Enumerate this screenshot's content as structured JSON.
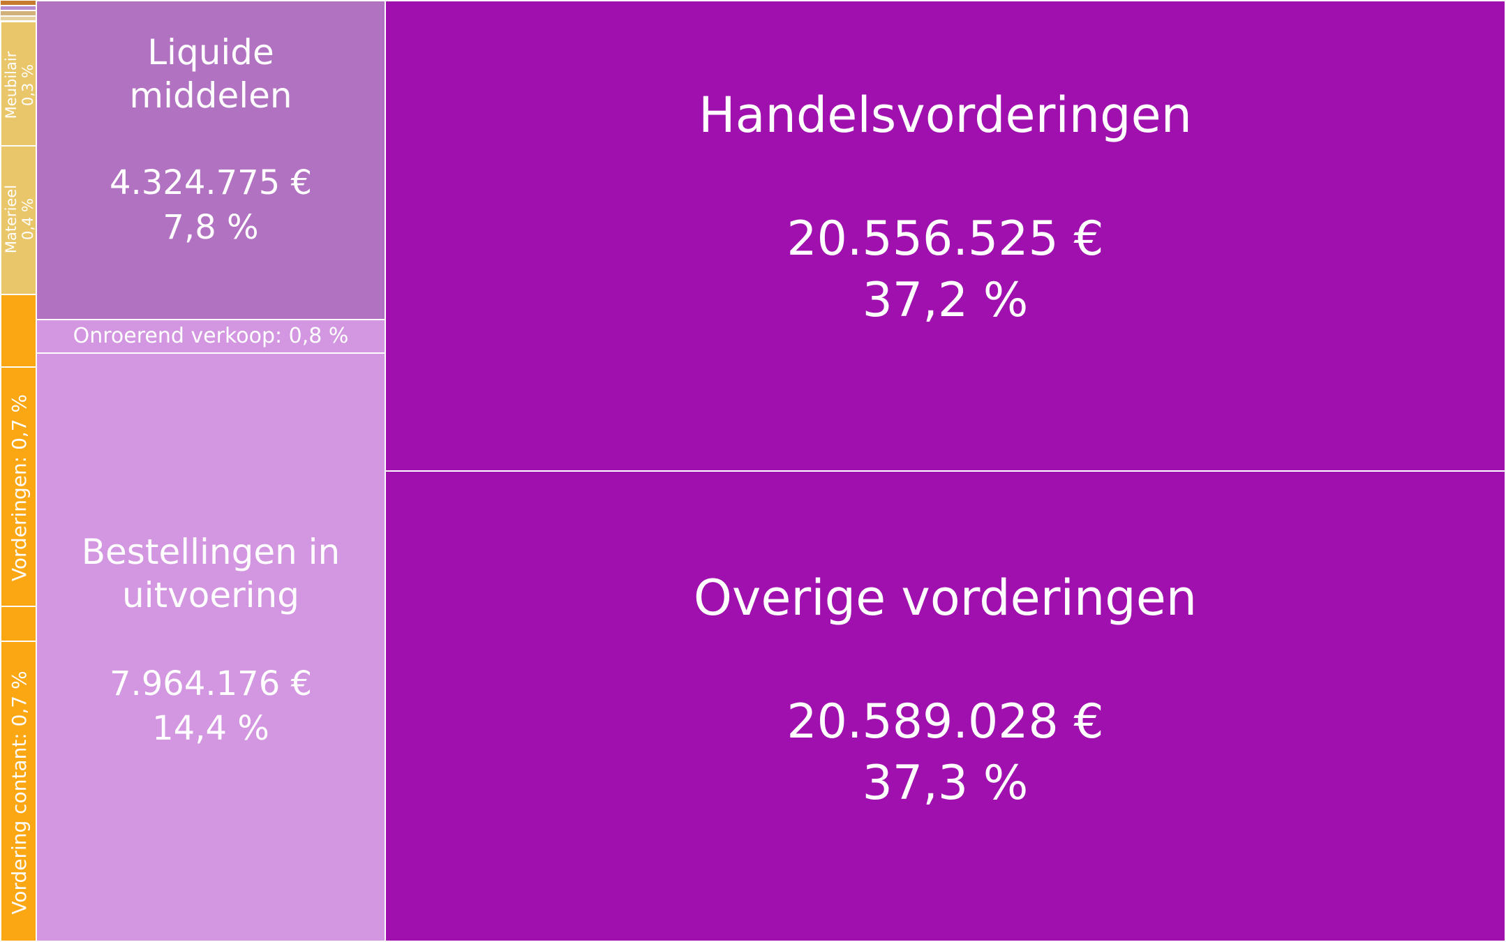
{
  "chart_data": {
    "type": "treemap",
    "currency": "€",
    "tiles": [
      {
        "id": "handelsvorderingen",
        "name": "Handelsvorderingen",
        "value": "20.556.525 €",
        "pct": "37,2 %",
        "share": 37.2,
        "color": "#a010ae"
      },
      {
        "id": "overige-vorderingen",
        "name": "Overige vorderingen",
        "value": "20.589.028 €",
        "pct": "37,3 %",
        "share": 37.3,
        "color": "#a010ae"
      },
      {
        "id": "liquide-middelen",
        "name_lines": [
          "Liquide",
          "middelen"
        ],
        "value": "4.324.775 €",
        "pct": "7,8 %",
        "share": 7.8,
        "color": "#b172c1"
      },
      {
        "id": "onroerend-verkoop",
        "label": "Onroerend verkoop: 0,8 %",
        "share": 0.8,
        "color": "#d396e0"
      },
      {
        "id": "bestellingen-in-uitvoering",
        "name_lines": [
          "Bestellingen in",
          "uitvoering"
        ],
        "value": "7.964.176 €",
        "pct": "14,4 %",
        "share": 14.4,
        "color": "#d396e0"
      },
      {
        "id": "vordering-contant",
        "label": "Vordering contant: 0,7 %",
        "share": 0.7,
        "color": "#fba714"
      },
      {
        "id": "vorderingen",
        "label": "Vorderingen: 0,7 %",
        "share": 0.7,
        "color": "#fba714"
      },
      {
        "id": "materieel",
        "label_lines": [
          "Materieel",
          "0,4 %"
        ],
        "share": 0.4,
        "color": "#eac66a"
      },
      {
        "id": "meubilair",
        "label_lines": [
          "Meubilair",
          "0,3 %"
        ],
        "share": 0.3,
        "color": "#eac66a"
      }
    ]
  }
}
